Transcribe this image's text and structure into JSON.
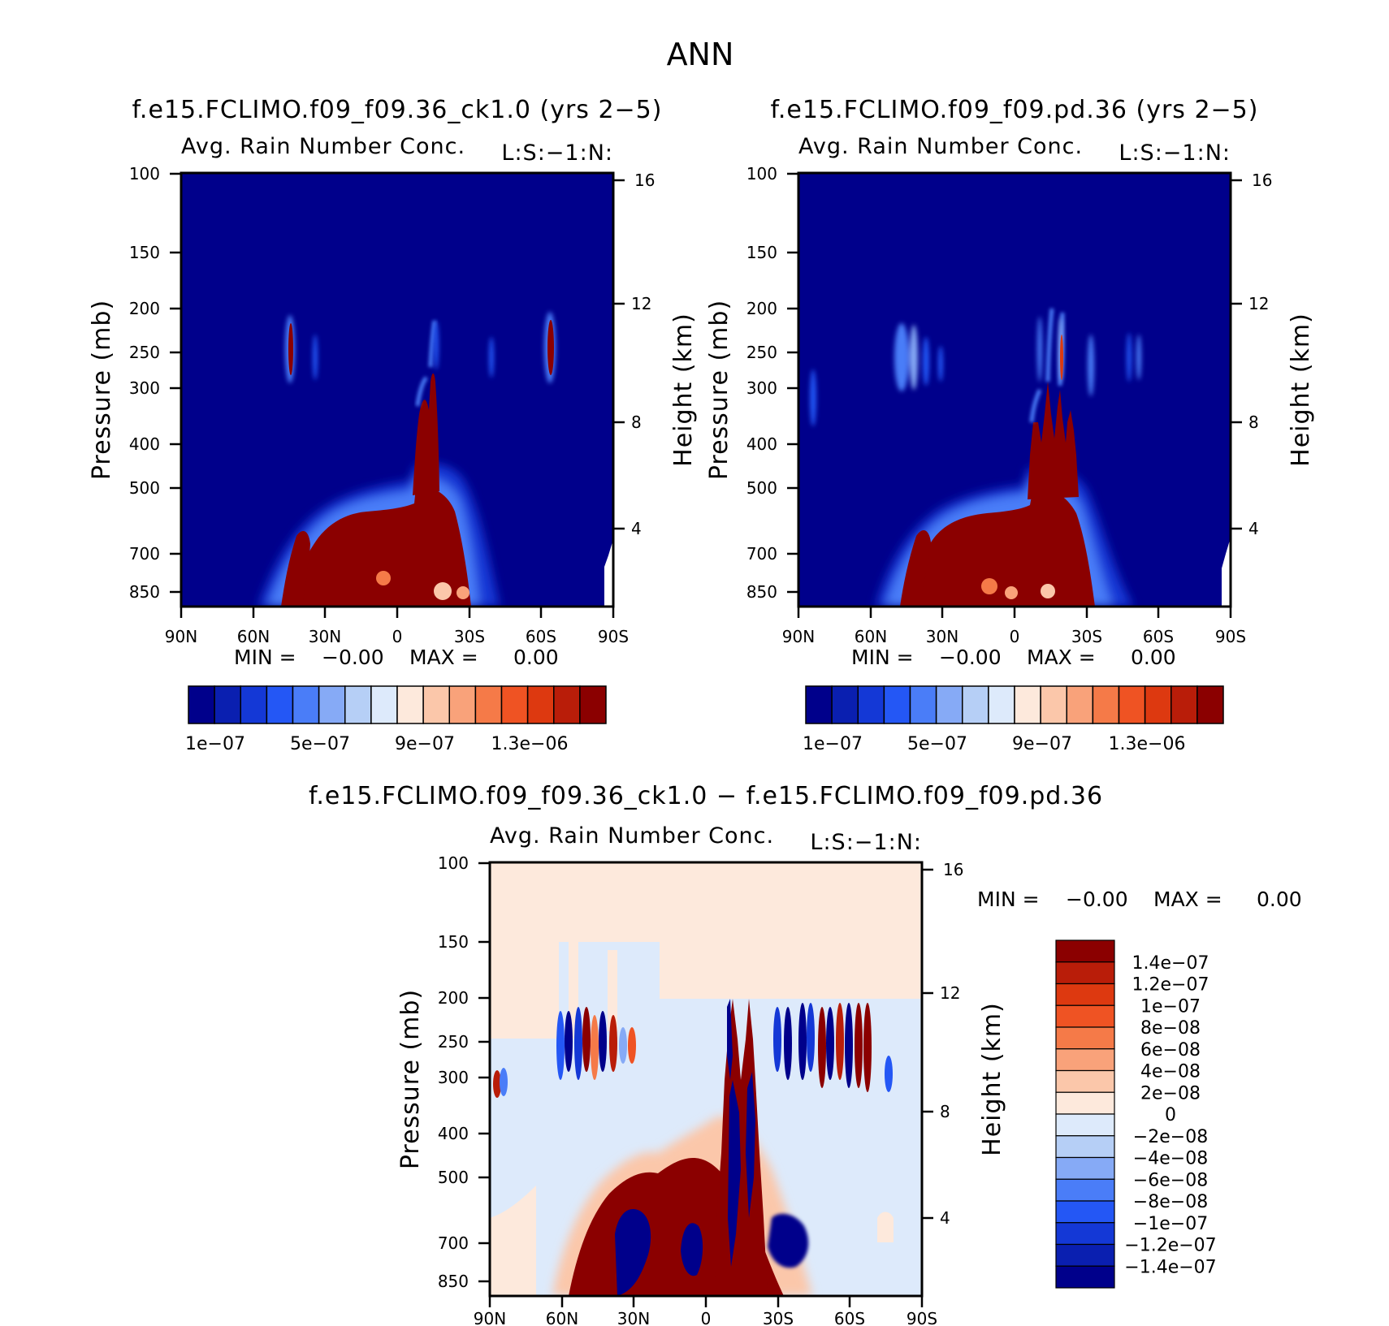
{
  "title": "ANN",
  "panels": [
    {
      "title": "f.e15.FCLIMO.f09_f09.36_ck1.0 (yrs 2−5)",
      "variable": "Avg. Rain Number Conc.",
      "level_tag": "L:S:−1:N:",
      "ylabel": "Pressure (mb)",
      "ylabel2": "Height (km)",
      "minmax": {
        "min_label": "MIN =",
        "min_value": "−0.00",
        "max_label": "MAX =",
        "max_value": "0.00"
      }
    },
    {
      "title": "f.e15.FCLIMO.f09_f09.pd.36 (yrs 2−5)",
      "variable": "Avg. Rain Number Conc.",
      "level_tag": "L:S:−1:N:",
      "ylabel": "Pressure (mb)",
      "ylabel2": "Height (km)",
      "minmax": {
        "min_label": "MIN =",
        "min_value": "−0.00",
        "max_label": "MAX =",
        "max_value": "0.00"
      }
    },
    {
      "title": "f.e15.FCLIMO.f09_f09.36_ck1.0 − f.e15.FCLIMO.f09_f09.pd.36",
      "variable": "Avg. Rain Number Conc.",
      "level_tag": "L:S:−1:N:",
      "ylabel": "Pressure (mb)",
      "ylabel2": "Height (km)",
      "minmax": {
        "min_label": "MIN =",
        "min_value": "−0.00",
        "max_label": "MAX =",
        "max_value": "0.00"
      }
    }
  ],
  "colorbar_abs": {
    "colors": [
      "#00008b",
      "#0a1fb0",
      "#1438d6",
      "#2457f5",
      "#4a7df8",
      "#86aaf6",
      "#b6cff6",
      "#ddeafb",
      "#fde9dc",
      "#fbc7aa",
      "#f9a27a",
      "#f57a48",
      "#ef5323",
      "#dd3910",
      "#b91d09",
      "#8b0000"
    ],
    "tick_labels": [
      "1e−07",
      "5e−07",
      "9e−07",
      "1.3e−06"
    ]
  },
  "colorbar_diff": {
    "colors": [
      "#00008b",
      "#0a1fb0",
      "#1438d6",
      "#2457f5",
      "#4a7df8",
      "#86aaf6",
      "#b6cff6",
      "#ddeafb",
      "#fde9dc",
      "#fbc7aa",
      "#f9a27a",
      "#f57a48",
      "#ef5323",
      "#dd3910",
      "#b91d09",
      "#8b0000"
    ],
    "tick_labels": [
      "1.4e−07",
      "1.2e−07",
      "1e−07",
      "8e−08",
      "6e−08",
      "4e−08",
      "2e−08",
      "0",
      "−2e−08",
      "−4e−08",
      "−6e−08",
      "−8e−08",
      "−1e−07",
      "−1.2e−07",
      "−1.4e−07"
    ]
  },
  "chart_data": [
    {
      "type": "heatmap",
      "title": "f.e15.FCLIMO.f09_f09.36_ck1.0 (yrs 2−5)",
      "xlabel": "",
      "ylabel": "Pressure (mb)",
      "y2label": "Height (km)",
      "x_ticks": [
        "90N",
        "60N",
        "30N",
        "0",
        "30S",
        "60S",
        "90S"
      ],
      "y_ticks": [
        100,
        150,
        200,
        250,
        300,
        400,
        500,
        700,
        850
      ],
      "y2_ticks": [
        16,
        12,
        8,
        4
      ],
      "xlim": [
        90,
        -90
      ],
      "ylim": [
        900,
        100
      ],
      "y_scale": "log",
      "background_value": 1e-07,
      "features": [
        {
          "desc": "low-level rain number maximum",
          "lat": [
            46,
            -27
          ],
          "p": [
            900,
            560
          ],
          "value": 1.5e-06
        },
        {
          "desc": "tropical deep convective plume",
          "lat": [
            5,
            -12
          ],
          "p": [
            900,
            330
          ],
          "value": 1.5e-06
        },
        {
          "desc": "upper-level maxima",
          "lat": [
            -63,
            44
          ],
          "p": [
            350,
            200
          ],
          "value": 1.3e-06
        }
      ]
    },
    {
      "type": "heatmap",
      "title": "f.e15.FCLIMO.f09_f09.pd.36 (yrs 2−5)",
      "xlabel": "",
      "ylabel": "Pressure (mb)",
      "y2label": "Height (km)",
      "x_ticks": [
        "90N",
        "60N",
        "30N",
        "0",
        "30S",
        "60S",
        "90S"
      ],
      "y_ticks": [
        100,
        150,
        200,
        250,
        300,
        400,
        500,
        700,
        850
      ],
      "y2_ticks": [
        16,
        12,
        8,
        4
      ],
      "xlim": [
        90,
        -90
      ],
      "ylim": [
        900,
        100
      ],
      "y_scale": "log",
      "background_value": 1e-07,
      "features": [
        {
          "desc": "low-level rain number maximum",
          "lat": [
            46,
            -30
          ],
          "p": [
            900,
            560
          ],
          "value": 1.5e-06
        },
        {
          "desc": "tropical deep convective plume",
          "lat": [
            -5,
            -22
          ],
          "p": [
            900,
            300
          ],
          "value": 1.5e-06
        }
      ]
    },
    {
      "type": "heatmap",
      "title": "f.e15.FCLIMO.f09_f09.36_ck1.0 − f.e15.FCLIMO.f09_f09.pd.36",
      "xlabel": "",
      "ylabel": "Pressure (mb)",
      "y2label": "Height (km)",
      "x_ticks": [
        "90N",
        "60N",
        "30N",
        "0",
        "30S",
        "60S",
        "90S"
      ],
      "y_ticks": [
        100,
        150,
        200,
        250,
        300,
        400,
        500,
        700,
        850
      ],
      "y2_ticks": [
        16,
        12,
        8,
        4
      ],
      "xlim": [
        90,
        -90
      ],
      "ylim": [
        900,
        100
      ],
      "y_scale": "log",
      "levels": [
        -1.4e-07,
        -1.2e-07,
        -1e-07,
        -8e-08,
        -6e-08,
        -4e-08,
        -2e-08,
        0,
        2e-08,
        4e-08,
        6e-08,
        8e-08,
        1e-07,
        1.2e-07,
        1.4e-07
      ]
    }
  ]
}
